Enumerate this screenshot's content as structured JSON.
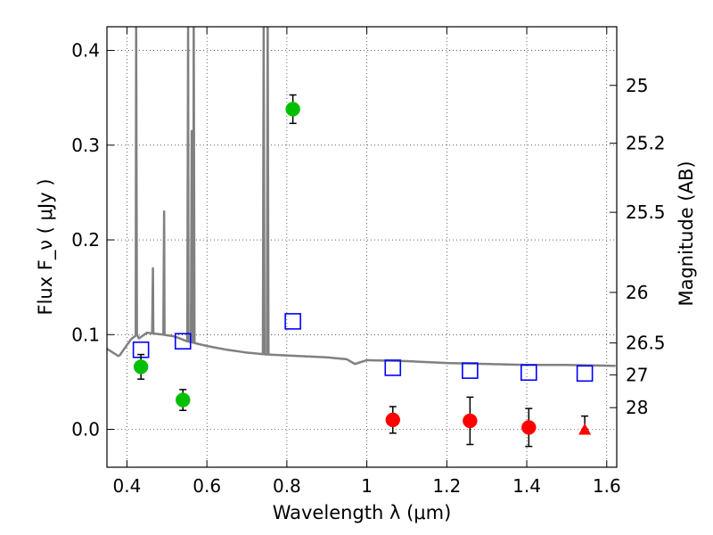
{
  "chart_data": {
    "type": "scatter",
    "title": "",
    "xlabel": "Wavelength  λ (μm)",
    "ylabel": "Flux  F_ν  ( μJy )",
    "y2label": "Magnitude (AB)",
    "xlim": [
      0.35,
      1.625
    ],
    "ylim": [
      -0.04,
      0.425
    ],
    "grid": true,
    "x_ticks": [
      {
        "v": 0.4,
        "label": "0.4"
      },
      {
        "v": 0.6,
        "label": "0.6"
      },
      {
        "v": 0.8,
        "label": "0.8"
      },
      {
        "v": 1.0,
        "label": "1"
      },
      {
        "v": 1.2,
        "label": "1.2"
      },
      {
        "v": 1.4,
        "label": "1.4"
      },
      {
        "v": 1.6,
        "label": "1.6"
      }
    ],
    "y_ticks": [
      {
        "v": 0.0,
        "label": "0.0"
      },
      {
        "v": 0.1,
        "label": "0.1"
      },
      {
        "v": 0.2,
        "label": "0.2"
      },
      {
        "v": 0.3,
        "label": "0.3"
      },
      {
        "v": 0.4,
        "label": "0.4"
      }
    ],
    "mag_ticks": [
      {
        "mag": 25,
        "label": "25"
      },
      {
        "mag": 25.2,
        "label": "25.2"
      },
      {
        "mag": 25.5,
        "label": "25.5"
      },
      {
        "mag": 26,
        "label": "26"
      },
      {
        "mag": 26.5,
        "label": "26.5"
      },
      {
        "mag": 27,
        "label": "27"
      },
      {
        "mag": 28,
        "label": "28"
      }
    ],
    "series": [
      {
        "name": "model spectrum",
        "style": "line",
        "color": "#808080",
        "x": [
          0.35,
          0.38,
          0.41,
          0.425,
          0.43,
          0.45,
          0.49,
          0.52,
          0.55,
          0.6,
          0.65,
          0.7,
          0.75,
          0.8,
          0.85,
          0.9,
          0.95,
          0.97,
          1.0,
          1.1,
          1.2,
          1.3,
          1.4,
          1.5,
          1.625
        ],
        "y": [
          0.085,
          0.077,
          0.095,
          0.1,
          0.096,
          0.102,
          0.1,
          0.098,
          0.093,
          0.088,
          0.084,
          0.081,
          0.079,
          0.078,
          0.077,
          0.076,
          0.074,
          0.069,
          0.073,
          0.072,
          0.07,
          0.069,
          0.068,
          0.068,
          0.067
        ],
        "emission_lines": [
          {
            "x": 0.423,
            "peak": 0.43
          },
          {
            "x": 0.465,
            "peak": 0.17
          },
          {
            "x": 0.493,
            "peak": 0.23
          },
          {
            "x": 0.553,
            "peak": 0.43
          },
          {
            "x": 0.562,
            "peak": 0.315
          },
          {
            "x": 0.567,
            "peak": 0.43
          },
          {
            "x": 0.742,
            "peak": 0.43
          },
          {
            "x": 0.752,
            "peak": 0.43
          }
        ]
      },
      {
        "name": "observed (green)",
        "style": "circle",
        "color": "#00bf00",
        "x": [
          0.435,
          0.54,
          0.815
        ],
        "y": [
          0.066,
          0.031,
          0.338
        ],
        "err": [
          0.013,
          0.011,
          0.015
        ]
      },
      {
        "name": "observed (red)",
        "style": "circle",
        "color": "#ff0000",
        "x": [
          1.065,
          1.258,
          1.405
        ],
        "y": [
          0.01,
          0.009,
          0.002
        ],
        "err": [
          0.014,
          0.025,
          0.02
        ]
      },
      {
        "name": "upper limit",
        "style": "triangle",
        "color": "#ff0000",
        "x": [
          1.545
        ],
        "y": [
          0.0
        ],
        "err_up": [
          0.014
        ]
      },
      {
        "name": "model photometry",
        "style": "square",
        "color": "#0000ff",
        "x": [
          0.435,
          0.54,
          0.815,
          1.065,
          1.258,
          1.405,
          1.545
        ],
        "y": [
          0.084,
          0.093,
          0.114,
          0.065,
          0.062,
          0.06,
          0.059
        ]
      }
    ]
  }
}
